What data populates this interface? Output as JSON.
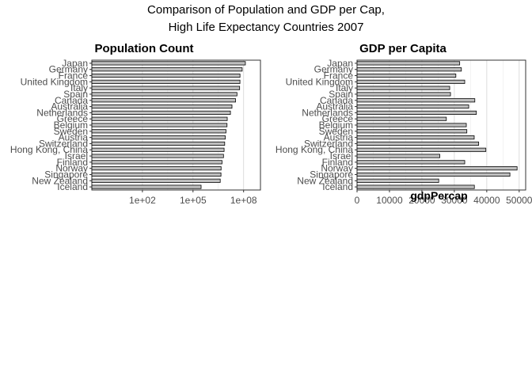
{
  "title_line1": "Comparison of Population and GDP per Cap,",
  "title_line2": "High Life Expectancy Countries 2007",
  "chart_data": [
    {
      "type": "bar",
      "orientation": "horizontal",
      "title": "Population Count",
      "xlabel": "",
      "xscale": "log10",
      "xlim": [
        0.1,
        1000000000
      ],
      "xticks": [
        100,
        100000,
        100000000
      ],
      "xtick_labels": [
        "1e+02",
        "1e+05",
        "1e+08"
      ],
      "categories": [
        "Japan",
        "Germany",
        "France",
        "United Kingdom",
        "Italy",
        "Spain",
        "Canada",
        "Australia",
        "Netherlands",
        "Greece",
        "Belgium",
        "Sweden",
        "Austria",
        "Switzerland",
        "Hong Kong, China",
        "Israel",
        "Finland",
        "Norway",
        "Singapore",
        "New Zealand",
        "Iceland"
      ],
      "values": [
        127467972,
        82400996,
        61083916,
        60776238,
        58147733,
        40448191,
        33390141,
        20434176,
        16570613,
        10706290,
        10392226,
        9031088,
        8199783,
        7554661,
        6980412,
        6426679,
        5238460,
        4627926,
        4553009,
        4115771,
        301931
      ],
      "bar_fill": "#bfbfbf",
      "grid": true
    },
    {
      "type": "bar",
      "orientation": "horizontal",
      "title": "GDP per Capita",
      "xlabel": "gdpPercap",
      "xlim": [
        0,
        52000
      ],
      "xticks": [
        0,
        10000,
        20000,
        30000,
        40000,
        50000
      ],
      "xtick_labels": [
        "0",
        "10000",
        "20000",
        "30000",
        "40000",
        "50000"
      ],
      "categories": [
        "Japan",
        "Germany",
        "France",
        "United Kingdom",
        "Italy",
        "Spain",
        "Canada",
        "Australia",
        "Netherlands",
        "Greece",
        "Belgium",
        "Sweden",
        "Austria",
        "Switzerland",
        "Hong Kong, China",
        "Israel",
        "Finland",
        "Norway",
        "Singapore",
        "New Zealand",
        "Iceland"
      ],
      "values": [
        31656,
        32170,
        30470,
        33203,
        28570,
        28821,
        36319,
        34435,
        36798,
        27538,
        33693,
        33860,
        36126,
        37506,
        39725,
        25523,
        33207,
        49357,
        47143,
        25185,
        36181
      ],
      "bar_fill": "#bfbfbf",
      "grid": true
    }
  ]
}
